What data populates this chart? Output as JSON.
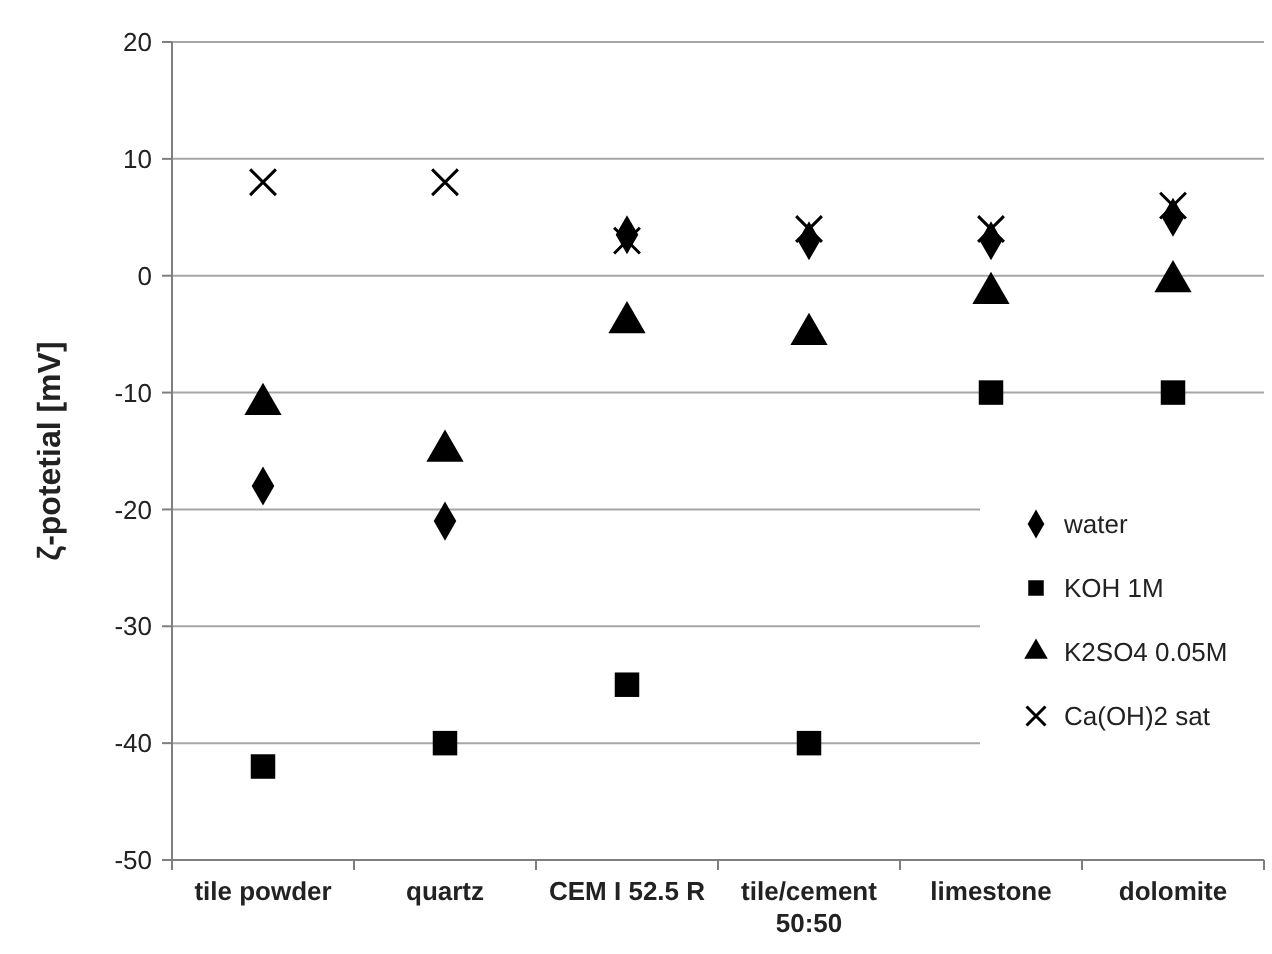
{
  "chart_data": {
    "type": "scatter",
    "ylabel": "ζ-potetial [mV]",
    "categories": [
      "tile powder",
      "quartz",
      "CEM I 52.5 R",
      "tile/cement 50:50",
      "limestone",
      "dolomite"
    ],
    "series": [
      {
        "name": "water",
        "color": "#000000",
        "marker": "diamond",
        "values": [
          -18,
          -21,
          3.5,
          3,
          3,
          5
        ]
      },
      {
        "name": "KOH 1M",
        "color": "#000000",
        "marker": "square",
        "values": [
          -42,
          -40,
          -35,
          -40,
          -10,
          -10
        ]
      },
      {
        "name": "K2SO4 0.05M",
        "color": "#000000",
        "marker": "triangle",
        "values": [
          -11,
          -15,
          -4,
          -5,
          -1.5,
          -0.5
        ]
      },
      {
        "name": "Ca(OH)2 sat",
        "color": "#000000",
        "marker": "cross",
        "values": [
          8,
          8,
          3,
          4,
          4,
          6
        ]
      }
    ],
    "ylim": [
      -50,
      20
    ],
    "yticks": [
      -50,
      -40,
      -30,
      -20,
      -10,
      0,
      10,
      20
    ],
    "grid": "y",
    "legend": "bottom right"
  }
}
